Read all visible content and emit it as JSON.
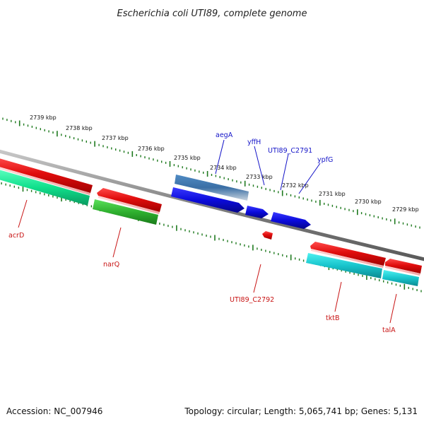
{
  "title": "Escherichia coli UTI89, complete genome",
  "footer": {
    "accession": "Accession: NC_007946",
    "topology": "Topology: circular; Length: 5,065,741 bp; Genes: 5,131"
  },
  "ticks": [
    "2739 kbp",
    "2738 kbp",
    "2737 kbp",
    "2736 kbp",
    "2735 kbp",
    "2734 kbp",
    "2733 kbp",
    "2732 kbp",
    "2731 kbp",
    "2730 kbp",
    "2729 kbp"
  ],
  "genes_top": [
    "aegA",
    "yffH",
    "UTI89_C2791",
    "ypfG"
  ],
  "genes_bottom": [
    "acrD",
    "narQ",
    "UTI89_C2792",
    "tktB",
    "talA"
  ],
  "colors": {
    "forward_cds": "#0b0bdc",
    "reverse_cds": "#e01010",
    "backbone": "#7a7a7a",
    "ticks": "#1f7a1f",
    "top_label": "#1414c8",
    "bottom_label": "#c81414"
  }
}
